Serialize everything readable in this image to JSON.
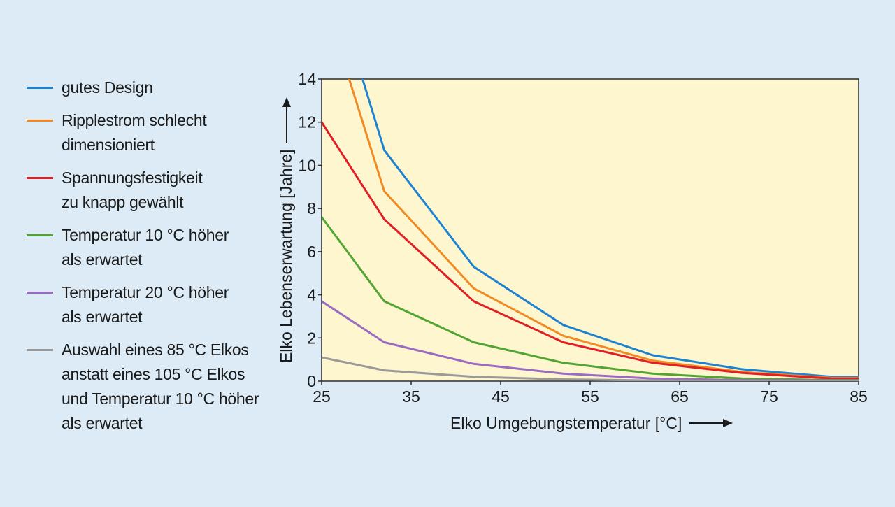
{
  "chart_data": {
    "type": "line",
    "xlabel": "Elko Umgebungstemperatur [°C]",
    "ylabel": "Elko Lebenserwartung [Jahre]",
    "xlim": [
      25,
      85
    ],
    "ylim": [
      0,
      14
    ],
    "xticks": [
      25,
      35,
      45,
      55,
      65,
      75,
      85
    ],
    "yticks": [
      0,
      2,
      4,
      6,
      8,
      10,
      12,
      14
    ],
    "legend_position": "left",
    "grid": false,
    "plot_background": "#fdf6cf",
    "series": [
      {
        "name": "gutes Design",
        "color": "#1f82d0",
        "x": [
          29.5,
          32,
          42,
          52,
          62,
          72,
          82,
          85
        ],
        "y": [
          14.1,
          10.7,
          5.3,
          2.6,
          1.2,
          0.55,
          0.2,
          0.2
        ]
      },
      {
        "name": "Ripplestrom schlecht\ndimensioniert",
        "color": "#f08a24",
        "x": [
          28,
          32,
          42,
          52,
          62,
          72,
          82,
          85
        ],
        "y": [
          14.1,
          8.8,
          4.3,
          2.1,
          0.95,
          0.42,
          0.15,
          0.15
        ]
      },
      {
        "name": "Spannungsfestigkeit\nzu knapp gewählt",
        "color": "#e02025",
        "x": [
          25,
          32,
          42,
          52,
          62,
          72,
          82,
          85
        ],
        "y": [
          12.0,
          7.5,
          3.7,
          1.8,
          0.85,
          0.38,
          0.12,
          0.12
        ]
      },
      {
        "name": "Temperatur 10 °C höher\nals erwartet",
        "color": "#52a532",
        "x": [
          25,
          32,
          42,
          52,
          62,
          72,
          82,
          85
        ],
        "y": [
          7.6,
          3.7,
          1.8,
          0.85,
          0.35,
          0.12,
          0.05,
          0.05
        ]
      },
      {
        "name": "Temperatur 20 °C höher\nals erwartet",
        "color": "#9b6bc4",
        "x": [
          25,
          32,
          42,
          52,
          62,
          72,
          82,
          85
        ],
        "y": [
          3.7,
          1.8,
          0.8,
          0.35,
          0.12,
          0.05,
          0.02,
          0.02
        ]
      },
      {
        "name": "Auswahl eines 85 °C Elkos\nanstatt eines 105 °C Elkos\nund Temperatur 10 °C höher\nals erwartet",
        "color": "#9a9a9a",
        "x": [
          25,
          32,
          42,
          52,
          62,
          72,
          82,
          85
        ],
        "y": [
          1.1,
          0.5,
          0.2,
          0.08,
          0.03,
          0.01,
          0.005,
          0.005
        ]
      }
    ]
  }
}
